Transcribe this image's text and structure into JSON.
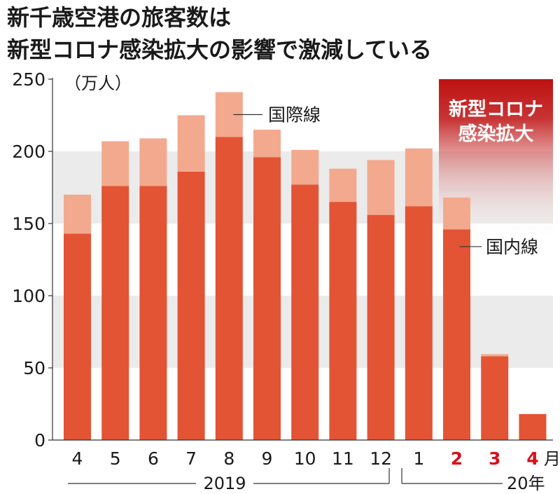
{
  "title": {
    "line1": "新千歳空港の旅客数は",
    "line2": "新型コロナ感染拡大の影響で激減している"
  },
  "chart_data": {
    "type": "bar",
    "stacked": true,
    "unit_label": "（万人）",
    "categories": [
      "4",
      "5",
      "6",
      "7",
      "8",
      "9",
      "10",
      "11",
      "12",
      "1",
      "2",
      "3",
      "4"
    ],
    "highlight_categories": [
      10,
      11,
      12
    ],
    "month_suffix": "月",
    "year_labels": [
      "2019",
      "20年"
    ],
    "series": [
      {
        "name": "国内線",
        "values": [
          143,
          176,
          176,
          186,
          210,
          196,
          177,
          165,
          156,
          162,
          146,
          58,
          18
        ]
      },
      {
        "name": "国際線",
        "values": [
          27,
          31,
          33,
          39,
          31,
          19,
          24,
          23,
          38,
          40,
          22,
          1.5,
          0
        ]
      }
    ],
    "yticks": [
      0,
      50,
      100,
      150,
      200,
      250
    ],
    "ylim": [
      0,
      250
    ],
    "annotation": {
      "line1": "新型コロナ",
      "line2": "感染拡大"
    },
    "grid": "bands",
    "colors": {
      "domestic": "#e35434",
      "international": "#f3a98e",
      "band": "#ebebeb",
      "highlight_top": "#be1111",
      "highlight_text": "#ffffff",
      "red_label": "#d6111c"
    }
  }
}
